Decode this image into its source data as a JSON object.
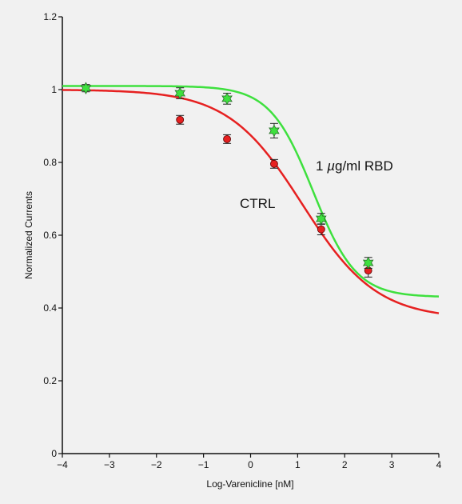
{
  "chart_data": {
    "type": "scatter",
    "title": "",
    "xlabel": "Log-Varenicline [nM]",
    "ylabel": "Normalized Currents",
    "xlim": [
      -4,
      4
    ],
    "ylim": [
      0,
      1.2
    ],
    "xticks": [
      -4,
      -3,
      -2,
      -1,
      0,
      1,
      2,
      3,
      4
    ],
    "xtick_labels": [
      "−4",
      "−3",
      "−2",
      "−1",
      "0",
      "1",
      "2",
      "3",
      "4"
    ],
    "yticks": [
      0,
      0.2,
      0.4,
      0.6,
      0.8,
      1,
      1.2
    ],
    "ytick_labels": [
      "0",
      "0.2",
      "0.4",
      "0.6",
      "0.8",
      "1",
      "1.2"
    ],
    "grid": false,
    "series": [
      {
        "name": "CTRL",
        "color": "#e62020",
        "marker": "circle",
        "points": [
          {
            "x": -1.5,
            "y": 0.917,
            "err": 0.012
          },
          {
            "x": -0.5,
            "y": 0.864,
            "err": 0.012
          },
          {
            "x": 0.5,
            "y": 0.796,
            "err": 0.012
          },
          {
            "x": 1.5,
            "y": 0.616,
            "err": 0.015
          },
          {
            "x": 2.5,
            "y": 0.503,
            "err": 0.018
          }
        ],
        "fit": {
          "bottom": 0.37,
          "top": 1.0,
          "log_ic50": 1.1,
          "hill": 0.55
        }
      },
      {
        "name": "1 µg/ml RBD",
        "color": "#3ee03e",
        "marker": "star",
        "points": [
          {
            "x": -3.5,
            "y": 1.004,
            "err": 0.01
          },
          {
            "x": -1.5,
            "y": 0.99,
            "err": 0.015
          },
          {
            "x": -0.5,
            "y": 0.975,
            "err": 0.015
          },
          {
            "x": 0.5,
            "y": 0.887,
            "err": 0.02
          },
          {
            "x": 1.5,
            "y": 0.645,
            "err": 0.015
          },
          {
            "x": 2.5,
            "y": 0.524,
            "err": 0.015
          }
        ],
        "fit": {
          "bottom": 0.43,
          "top": 1.01,
          "log_ic50": 1.33,
          "hill": 0.95
        }
      }
    ],
    "annotations": {
      "rbd_prefix": "1 ",
      "rbd_mu": "µ",
      "rbd_suffix": "g/ml RBD",
      "ctrl": "CTRL"
    }
  }
}
